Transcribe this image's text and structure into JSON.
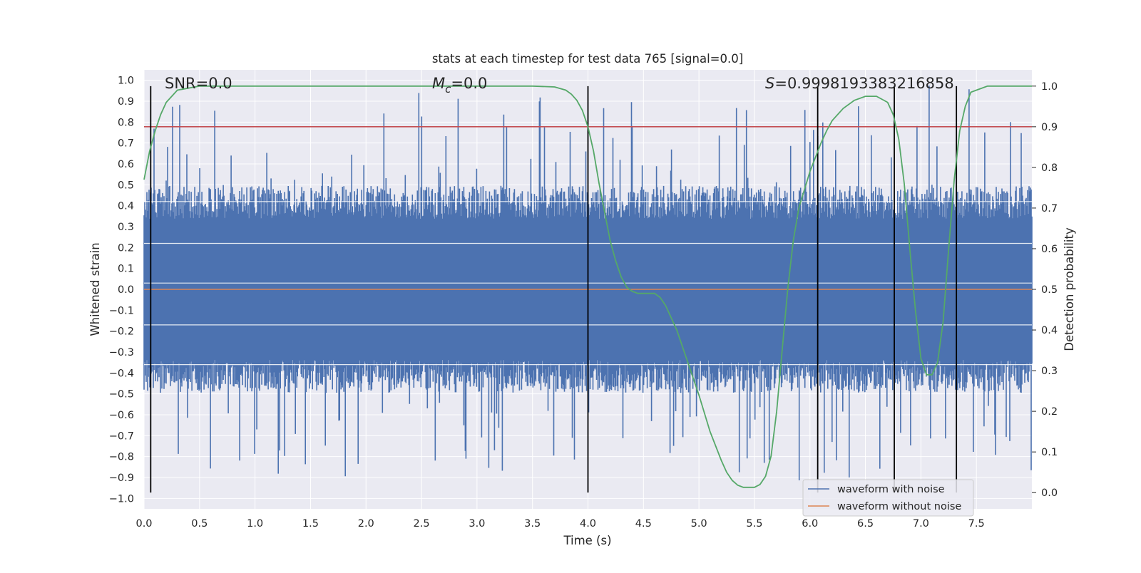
{
  "chart_data": {
    "type": "line",
    "title": "stats at each timestep for test data 765 [signal=0.0]",
    "xlabel": "Time (s)",
    "ylabel_left": "Whitened strain",
    "ylabel_right": "Detection probability",
    "xlim": [
      0.0,
      8.0
    ],
    "ylim_left": [
      -1.05,
      1.05
    ],
    "ylim_right": [
      -0.04,
      1.04
    ],
    "x_ticks": [
      "0.0",
      "0.5",
      "1.0",
      "1.5",
      "2.0",
      "2.5",
      "3.0",
      "3.5",
      "4.0",
      "4.5",
      "5.0",
      "5.5",
      "6.0",
      "6.5",
      "7.0",
      "7.5"
    ],
    "x_tick_values": [
      0,
      0.5,
      1,
      1.5,
      2,
      2.5,
      3,
      3.5,
      4,
      4.5,
      5,
      5.5,
      6,
      6.5,
      7,
      7.5
    ],
    "y_left_ticks": [
      "1.0",
      "0.9",
      "0.8",
      "0.7",
      "0.6",
      "0.5",
      "0.4",
      "0.3",
      "0.2",
      "0.1",
      "0.0",
      "−0.1",
      "−0.2",
      "−0.3",
      "−0.4",
      "−0.5",
      "−0.6",
      "−0.7",
      "−0.8",
      "−0.9",
      "−1.0"
    ],
    "y_left_tick_values": [
      1,
      0.9,
      0.8,
      0.7,
      0.6,
      0.5,
      0.4,
      0.3,
      0.2,
      0.1,
      0,
      -0.1,
      -0.2,
      -0.3,
      -0.4,
      -0.5,
      -0.6,
      -0.7,
      -0.8,
      -0.9,
      -1
    ],
    "y_right_ticks": [
      "1.0",
      "0.9",
      "0.8",
      "0.7",
      "0.6",
      "0.5",
      "0.4",
      "0.3",
      "0.2",
      "0.1",
      "0.0"
    ],
    "y_right_tick_values": [
      1,
      0.9,
      0.8,
      0.7,
      0.6,
      0.5,
      0.4,
      0.3,
      0.2,
      0.1,
      0
    ],
    "annotations": {
      "snr": "SNR=0.0",
      "mc_symbol": "M",
      "mc_sub": "c",
      "mc_value": "=0.0",
      "s_symbol": "S",
      "s_value": "=0.9998193383216858"
    },
    "threshold_right": 0.9,
    "vertical_markers": [
      0.06,
      4.0,
      6.07,
      6.76,
      7.32
    ],
    "series": [
      {
        "name": "waveform with noise",
        "color": "#4c72b0",
        "kind": "noise",
        "amplitude_typical": 0.45,
        "amplitude_max": 1.0
      },
      {
        "name": "waveform without noise",
        "color": "#dd8452",
        "kind": "flat",
        "value": 0.0
      },
      {
        "name": "detection probability",
        "color": "#55a868",
        "axis": "right",
        "x": [
          0.0,
          0.05,
          0.1,
          0.15,
          0.2,
          0.3,
          0.5,
          1.0,
          2.0,
          3.0,
          3.5,
          3.7,
          3.8,
          3.85,
          3.9,
          3.95,
          4.0,
          4.05,
          4.1,
          4.2,
          4.25,
          4.3,
          4.35,
          4.4,
          4.45,
          4.5,
          4.6,
          4.65,
          4.7,
          4.8,
          4.9,
          5.0,
          5.1,
          5.2,
          5.25,
          5.3,
          5.35,
          5.4,
          5.5,
          5.55,
          5.6,
          5.65,
          5.7,
          5.75,
          5.8,
          5.85,
          5.9,
          6.0,
          6.1,
          6.15,
          6.2,
          6.3,
          6.4,
          6.5,
          6.6,
          6.7,
          6.75,
          6.8,
          6.85,
          6.9,
          6.95,
          7.0,
          7.05,
          7.1,
          7.15,
          7.2,
          7.25,
          7.3,
          7.35,
          7.4,
          7.45,
          7.5,
          7.6,
          7.7,
          7.8,
          7.9,
          8.0
        ],
        "y": [
          0.77,
          0.84,
          0.89,
          0.93,
          0.96,
          0.99,
          1.0,
          1.0,
          1.0,
          1.0,
          1.0,
          0.998,
          0.99,
          0.98,
          0.965,
          0.94,
          0.9,
          0.84,
          0.76,
          0.62,
          0.57,
          0.53,
          0.505,
          0.495,
          0.49,
          0.49,
          0.49,
          0.48,
          0.46,
          0.4,
          0.32,
          0.24,
          0.15,
          0.08,
          0.05,
          0.03,
          0.018,
          0.013,
          0.013,
          0.02,
          0.04,
          0.09,
          0.2,
          0.35,
          0.5,
          0.62,
          0.7,
          0.79,
          0.86,
          0.89,
          0.915,
          0.945,
          0.965,
          0.975,
          0.975,
          0.96,
          0.93,
          0.87,
          0.76,
          0.6,
          0.45,
          0.33,
          0.29,
          0.29,
          0.32,
          0.42,
          0.6,
          0.77,
          0.89,
          0.95,
          0.985,
          0.99,
          1.0,
          1.0,
          1.0,
          1.0,
          1.0
        ]
      }
    ]
  }
}
